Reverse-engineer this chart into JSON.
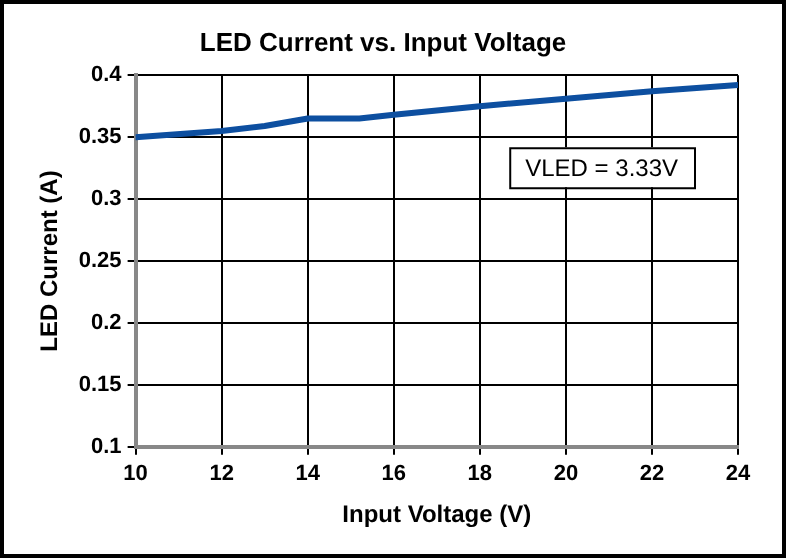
{
  "chart_data": {
    "type": "line",
    "title": "LED Current vs. Input Voltage",
    "xlabel": "Input Voltage (V)",
    "ylabel": "LED Current (A)",
    "x": [
      10,
      12,
      13,
      14,
      15.2,
      16,
      18,
      20,
      22,
      24
    ],
    "series": [
      {
        "color": "#0d4fa0",
        "values": [
          0.35,
          0.355,
          0.359,
          0.365,
          0.365,
          0.368,
          0.375,
          0.381,
          0.387,
          0.392
        ]
      }
    ],
    "xlim": [
      10,
      24
    ],
    "xticks": [
      10,
      12,
      14,
      16,
      18,
      20,
      22,
      24
    ],
    "ylim": [
      0.1,
      0.4
    ],
    "yticks": [
      0.1,
      0.15,
      0.2,
      0.25,
      0.3,
      0.35,
      0.4
    ],
    "grid": true,
    "legend": false,
    "marker": "none",
    "line_style": "solid",
    "annotations": [
      "VLED = 3.33V"
    ]
  }
}
